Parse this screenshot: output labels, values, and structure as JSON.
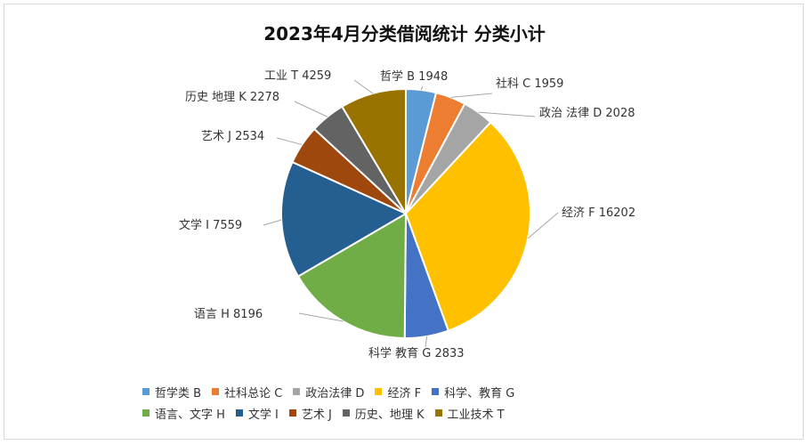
{
  "chart_data": {
    "type": "pie",
    "title": "2023年4月分类借阅统计  分类小计",
    "slices": [
      {
        "label": "哲学  B  1948",
        "legend": "哲学类 B",
        "value": 1948,
        "color": "#5b9bd5"
      },
      {
        "label": "社科  C    1959",
        "legend": "社科总论 C",
        "value": 1959,
        "color": "#ed7d31"
      },
      {
        "label": "政治 法律 D 2028",
        "legend": "政治法律 D",
        "value": 2028,
        "color": "#a5a5a5"
      },
      {
        "label": "经济  F  16202",
        "legend": "经济 F",
        "value": 16202,
        "color": "#ffc000"
      },
      {
        "label": "科学  教育  G   2833",
        "legend": "科学、教育 G",
        "value": 2833,
        "color": "#4472c4"
      },
      {
        "label": "语言  H    8196",
        "legend": "语言、文字 H",
        "value": 8196,
        "color": "#70ad47"
      },
      {
        "label": "文学  I   7559",
        "legend": "文学 I",
        "value": 7559,
        "color": "#255e91"
      },
      {
        "label": "艺术 J  2534",
        "legend": "艺术 J",
        "value": 2534,
        "color": "#9e480e"
      },
      {
        "label": "历史 地理  K   2278",
        "legend": "历史、地理 K",
        "value": 2278,
        "color": "#636363"
      },
      {
        "label": "工业    T    4259",
        "legend": "工业技术 T",
        "value": 4259,
        "color": "#997300"
      }
    ],
    "legend_position": "bottom"
  }
}
